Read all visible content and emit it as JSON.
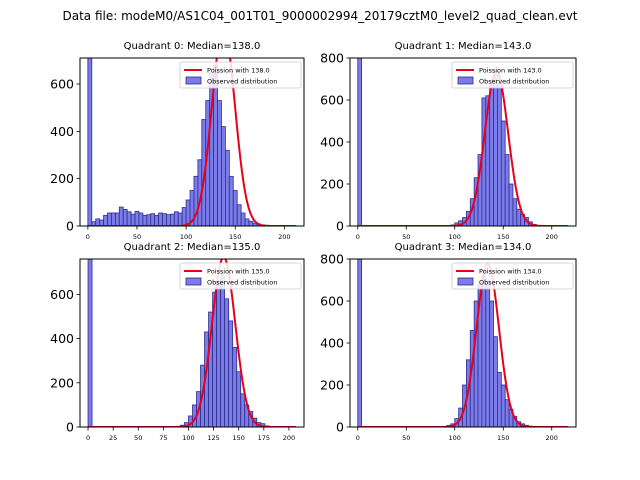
{
  "figure_title": "Data file: modeM0/AS1C04_001T01_9000002994_20179cztM0_level2_quad_clean.evt",
  "chart_data": [
    {
      "type": "bar",
      "title": "Quadrant 0: Median=138.0",
      "xlabel": "",
      "ylabel": "",
      "xlim": [
        -8,
        220
      ],
      "ylim": [
        0,
        710
      ],
      "xticks": [
        0,
        50,
        100,
        150,
        200
      ],
      "yticks": [
        0,
        200,
        400,
        600
      ],
      "bin_width": 4,
      "bin_starts": [
        0,
        4,
        8,
        12,
        16,
        20,
        24,
        28,
        32,
        36,
        40,
        44,
        48,
        52,
        56,
        60,
        64,
        68,
        72,
        76,
        80,
        84,
        88,
        92,
        96,
        100,
        104,
        108,
        112,
        116,
        120,
        124,
        128,
        132,
        136,
        140,
        144,
        148,
        152,
        156,
        160,
        164,
        168,
        172,
        176,
        180,
        184,
        188,
        192,
        196,
        200,
        204
      ],
      "values": [
        710,
        18,
        30,
        25,
        45,
        55,
        55,
        55,
        80,
        70,
        60,
        50,
        62,
        55,
        45,
        48,
        52,
        45,
        55,
        52,
        48,
        50,
        60,
        55,
        78,
        110,
        150,
        210,
        280,
        450,
        530,
        650,
        680,
        530,
        420,
        320,
        210,
        150,
        90,
        55,
        30,
        20,
        12,
        8,
        5,
        3,
        2,
        1,
        1,
        0,
        0,
        0
      ],
      "fit": {
        "label": "Poission with 138.0",
        "mean": 138.0,
        "sigma": 11.75
      },
      "legend": {
        "position": "top-right",
        "entries": [
          "Poission with 138.0",
          "Observed distribution"
        ]
      }
    },
    {
      "type": "bar",
      "title": "Quadrant 1: Median=143.0",
      "xlabel": "",
      "ylabel": "",
      "xlim": [
        -8,
        225
      ],
      "ylim": [
        0,
        800
      ],
      "xticks": [
        0,
        50,
        100,
        150,
        200
      ],
      "yticks": [
        0,
        200,
        400,
        600,
        800
      ],
      "bin_width": 4,
      "bin_starts": [
        0,
        4,
        8,
        12,
        16,
        20,
        24,
        28,
        32,
        36,
        40,
        44,
        48,
        52,
        56,
        60,
        64,
        68,
        72,
        76,
        80,
        84,
        88,
        92,
        96,
        100,
        104,
        108,
        112,
        116,
        120,
        124,
        128,
        132,
        136,
        140,
        144,
        148,
        152,
        156,
        160,
        164,
        168,
        172,
        176,
        180,
        184,
        188,
        192,
        196,
        200,
        204,
        208
      ],
      "values": [
        800,
        0,
        0,
        0,
        0,
        0,
        0,
        0,
        0,
        0,
        0,
        0,
        0,
        0,
        0,
        0,
        0,
        0,
        0,
        0,
        0,
        0,
        0,
        2,
        5,
        15,
        25,
        40,
        70,
        130,
        230,
        340,
        610,
        620,
        660,
        720,
        680,
        500,
        340,
        200,
        130,
        80,
        55,
        40,
        20,
        8,
        3,
        1,
        0,
        0,
        0,
        0,
        0
      ],
      "fit": {
        "label": "Poission with 143.0",
        "mean": 143.0,
        "sigma": 11.96
      },
      "legend": {
        "position": "top-right",
        "entries": [
          "Poission with 143.0",
          "Observed distribution"
        ]
      }
    },
    {
      "type": "bar",
      "title": "Quadrant 2: Median=135.0",
      "xlabel": "",
      "ylabel": "",
      "xlim": [
        -8,
        215
      ],
      "ylim": [
        0,
        760
      ],
      "xticks": [
        0,
        25,
        50,
        75,
        100,
        125,
        150,
        175,
        200
      ],
      "yticks": [
        0,
        200,
        400,
        600
      ],
      "bin_width": 4,
      "bin_starts": [
        0,
        4,
        8,
        12,
        16,
        20,
        24,
        28,
        32,
        36,
        40,
        44,
        48,
        52,
        56,
        60,
        64,
        68,
        72,
        76,
        80,
        84,
        88,
        92,
        96,
        100,
        104,
        108,
        112,
        116,
        120,
        124,
        128,
        132,
        136,
        140,
        144,
        148,
        152,
        156,
        160,
        164,
        168,
        172,
        176,
        180,
        184,
        188,
        192,
        196
      ],
      "values": [
        760,
        0,
        0,
        0,
        0,
        0,
        0,
        0,
        0,
        0,
        0,
        0,
        0,
        0,
        0,
        0,
        0,
        0,
        0,
        0,
        0,
        2,
        3,
        8,
        20,
        50,
        100,
        160,
        280,
        430,
        520,
        610,
        660,
        680,
        580,
        480,
        360,
        250,
        150,
        100,
        70,
        40,
        20,
        15,
        5,
        2,
        1,
        0,
        0,
        0
      ],
      "fit": {
        "label": "Poission with 135.0",
        "mean": 135.0,
        "sigma": 11.62
      },
      "legend": {
        "position": "top-right",
        "entries": [
          "Poission with 135.0",
          "Observed distribution"
        ]
      }
    },
    {
      "type": "bar",
      "title": "Quadrant 3: Median=134.0",
      "xlabel": "",
      "ylabel": "",
      "xlim": [
        -8,
        225
      ],
      "ylim": [
        0,
        800
      ],
      "xticks": [
        0,
        50,
        100,
        150,
        200
      ],
      "yticks": [
        0,
        200,
        400,
        600,
        800
      ],
      "bin_width": 4,
      "bin_starts": [
        0,
        4,
        8,
        12,
        16,
        20,
        24,
        28,
        32,
        36,
        40,
        44,
        48,
        52,
        56,
        60,
        64,
        68,
        72,
        76,
        80,
        84,
        88,
        92,
        96,
        100,
        104,
        108,
        112,
        116,
        120,
        124,
        128,
        132,
        136,
        140,
        144,
        148,
        152,
        156,
        160,
        164,
        168,
        172,
        176,
        180,
        184,
        188,
        192,
        196,
        200,
        204
      ],
      "values": [
        800,
        0,
        0,
        0,
        0,
        0,
        0,
        0,
        0,
        0,
        0,
        0,
        0,
        0,
        0,
        0,
        0,
        0,
        0,
        0,
        0,
        1,
        3,
        8,
        15,
        40,
        90,
        200,
        320,
        460,
        600,
        680,
        720,
        700,
        600,
        430,
        260,
        200,
        130,
        85,
        50,
        25,
        15,
        8,
        4,
        2,
        1,
        0,
        0,
        0,
        0,
        0
      ],
      "fit": {
        "label": "Poission with 134.0",
        "mean": 134.0,
        "sigma": 11.58
      },
      "legend": {
        "position": "top-right",
        "entries": [
          "Poission with 134.0",
          "Observed distribution"
        ]
      }
    }
  ]
}
